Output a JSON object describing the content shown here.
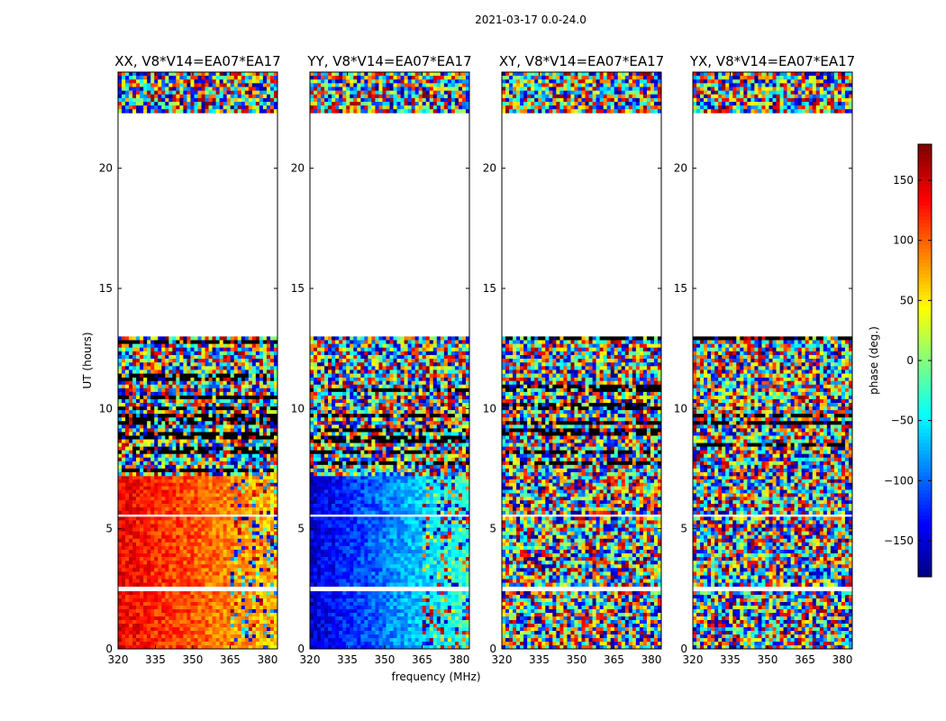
{
  "suptitle": "2021-03-17 0.0-24.0",
  "colors": {
    "background": "#ffffff",
    "frame": "#000000",
    "colormap": "jet"
  },
  "chart_data": {
    "type": "heatmap",
    "xlabel": "frequency (MHz)",
    "ylabel": "UT (hours)",
    "xlim": [
      320,
      384
    ],
    "ylim": [
      0,
      24
    ],
    "x_ticks": [
      320,
      335,
      350,
      365,
      380
    ],
    "y_ticks": [
      0,
      5,
      10,
      15,
      20
    ],
    "colorbar": {
      "label": "phase (deg.)",
      "range": [
        -180,
        180
      ],
      "ticks": [
        150,
        100,
        50,
        0,
        -50,
        -100,
        -150
      ],
      "tick_labels": [
        "150",
        "100",
        "50",
        "0",
        "−50",
        "−100",
        "−150"
      ]
    },
    "data_time_ranges_hours": [
      [
        0,
        2.4
      ],
      [
        2.6,
        5.5
      ],
      [
        5.6,
        7.2
      ],
      [
        7.2,
        11.3
      ],
      [
        11.3,
        13.0
      ],
      [
        22.3,
        24.0
      ]
    ],
    "panels": [
      {
        "title": "XX, V8*V14=EA07*EA17",
        "mean_phase_deg": 140
      },
      {
        "title": "YY, V8*V14=EA07*EA17",
        "mean_phase_deg": -150
      },
      {
        "title": "XY, V8*V14=EA07*EA17",
        "mean_phase_deg": null
      },
      {
        "title": "YX, V8*V14=EA07*EA17",
        "mean_phase_deg": null
      }
    ]
  }
}
